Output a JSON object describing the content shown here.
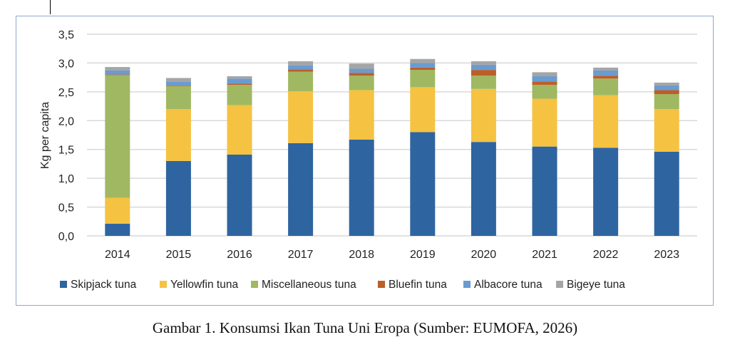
{
  "chart_data": {
    "type": "bar",
    "stacked": true,
    "title": "",
    "xlabel": "",
    "ylabel": "Kg per capita",
    "ylim": [
      0,
      3.5
    ],
    "yticks": [
      "0,0",
      "0,5",
      "1,0",
      "1,5",
      "2,0",
      "2,5",
      "3,0",
      "3,5"
    ],
    "grid": true,
    "legend_position": "bottom",
    "categories": [
      "2014",
      "2015",
      "2016",
      "2017",
      "2018",
      "2019",
      "2020",
      "2021",
      "2022",
      "2023"
    ],
    "series": [
      {
        "name": "Skipjack tuna",
        "color": "#2e64a0",
        "values": [
          0.21,
          1.3,
          1.41,
          1.61,
          1.67,
          1.8,
          1.63,
          1.55,
          1.53,
          1.46
        ]
      },
      {
        "name": "Yellowfin tuna",
        "color": "#f5c242",
        "values": [
          0.45,
          0.9,
          0.86,
          0.9,
          0.86,
          0.78,
          0.92,
          0.83,
          0.91,
          0.74
        ]
      },
      {
        "name": "Miscellaneous tuna",
        "color": "#a0b862",
        "values": [
          2.13,
          0.4,
          0.35,
          0.34,
          0.25,
          0.3,
          0.23,
          0.24,
          0.29,
          0.26
        ]
      },
      {
        "name": "Bluefin tuna",
        "color": "#bb5f28",
        "values": [
          0.01,
          0.01,
          0.02,
          0.04,
          0.05,
          0.04,
          0.1,
          0.06,
          0.05,
          0.07
        ]
      },
      {
        "name": "Albacore tuna",
        "color": "#6a9bd1",
        "values": [
          0.07,
          0.07,
          0.09,
          0.07,
          0.07,
          0.08,
          0.09,
          0.09,
          0.09,
          0.08
        ]
      },
      {
        "name": "Bigeye tuna",
        "color": "#a5a5a5",
        "values": [
          0.06,
          0.06,
          0.04,
          0.07,
          0.09,
          0.07,
          0.06,
          0.07,
          0.05,
          0.05
        ]
      }
    ]
  },
  "caption": "Gambar 1. Konsumsi Ikan Tuna Uni Eropa (Sumber: EUMOFA, 2026)"
}
